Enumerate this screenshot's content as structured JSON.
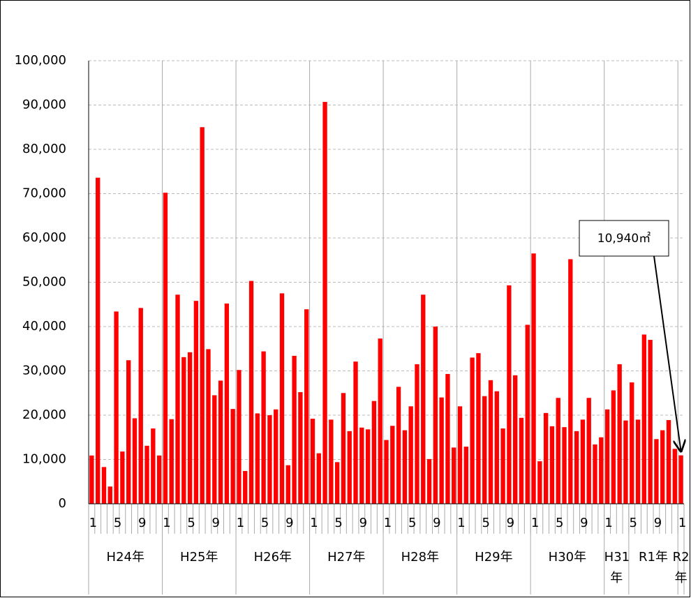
{
  "chart_data": {
    "type": "bar",
    "categories": [
      "1",
      null,
      null,
      null,
      "5",
      null,
      null,
      null,
      "9",
      null,
      null,
      null,
      "1",
      null,
      null,
      null,
      "5",
      null,
      null,
      null,
      "9",
      null,
      null,
      null,
      "1",
      null,
      null,
      null,
      "5",
      null,
      null,
      null,
      "9",
      null,
      null,
      null,
      "1",
      null,
      null,
      null,
      "5",
      null,
      null,
      null,
      "9",
      null,
      null,
      null,
      "1",
      null,
      null,
      null,
      "5",
      null,
      null,
      null,
      "9",
      null,
      null,
      null,
      "1",
      null,
      null,
      null,
      "5",
      null,
      null,
      null,
      "9",
      null,
      null,
      null,
      "1",
      null,
      null,
      null,
      "5",
      null,
      null,
      null,
      "9",
      null,
      null,
      null,
      "1",
      null,
      null,
      null,
      "5",
      null,
      null,
      null,
      "9",
      null,
      null,
      null,
      "1"
    ],
    "groups": [
      "H24年",
      "H25年",
      "H26年",
      "H27年",
      "H28年",
      "H29年",
      "H30年",
      "H31年",
      "R1年",
      "R2年"
    ],
    "values": [
      10900,
      73600,
      8300,
      3900,
      43400,
      11800,
      32400,
      19300,
      44200,
      13100,
      17000,
      10900,
      70200,
      19100,
      47200,
      33100,
      34200,
      45800,
      85000,
      34900,
      24500,
      27800,
      45200,
      21400,
      30200,
      7400,
      50300,
      20400,
      34400,
      20000,
      21300,
      47500,
      8700,
      33400,
      25200,
      43900,
      19200,
      11400,
      90700,
      19000,
      9400,
      25000,
      16400,
      32100,
      17200,
      16800,
      23200,
      37300,
      14400,
      17600,
      26400,
      16600,
      22000,
      31500,
      47200,
      10100,
      40000,
      24000,
      29300,
      12700,
      22000,
      12900,
      33000,
      34000,
      24300,
      27900,
      25400,
      17000,
      49300,
      29000,
      19400,
      40400,
      56500,
      9600,
      20500,
      17500,
      23900,
      17300,
      55200,
      16400,
      19000,
      23900,
      13400,
      15000,
      21300,
      25600,
      31500,
      18800,
      27400,
      19000,
      38200,
      37000,
      14600,
      16600,
      18900,
      12400,
      10940
    ],
    "color": "#ff0000",
    "ylim": [
      0,
      100000
    ],
    "yticks": [
      0,
      {
        "value": 10000,
        "label": "10,000"
      },
      {
        "value": 20000,
        "label": "20,000"
      },
      {
        "value": 30000,
        "label": "30,000"
      },
      {
        "value": 40000,
        "label": "40,000"
      },
      {
        "value": 50000,
        "label": "50,000"
      },
      {
        "value": 60000,
        "label": "60,000"
      },
      {
        "value": 70000,
        "label": "70,000"
      },
      {
        "value": 80000,
        "label": "80,000"
      },
      {
        "value": 90000,
        "label": "90,000"
      },
      {
        "value": 100000,
        "label": "100,000"
      }
    ],
    "grid": true,
    "annotation": "10,940㎡"
  }
}
